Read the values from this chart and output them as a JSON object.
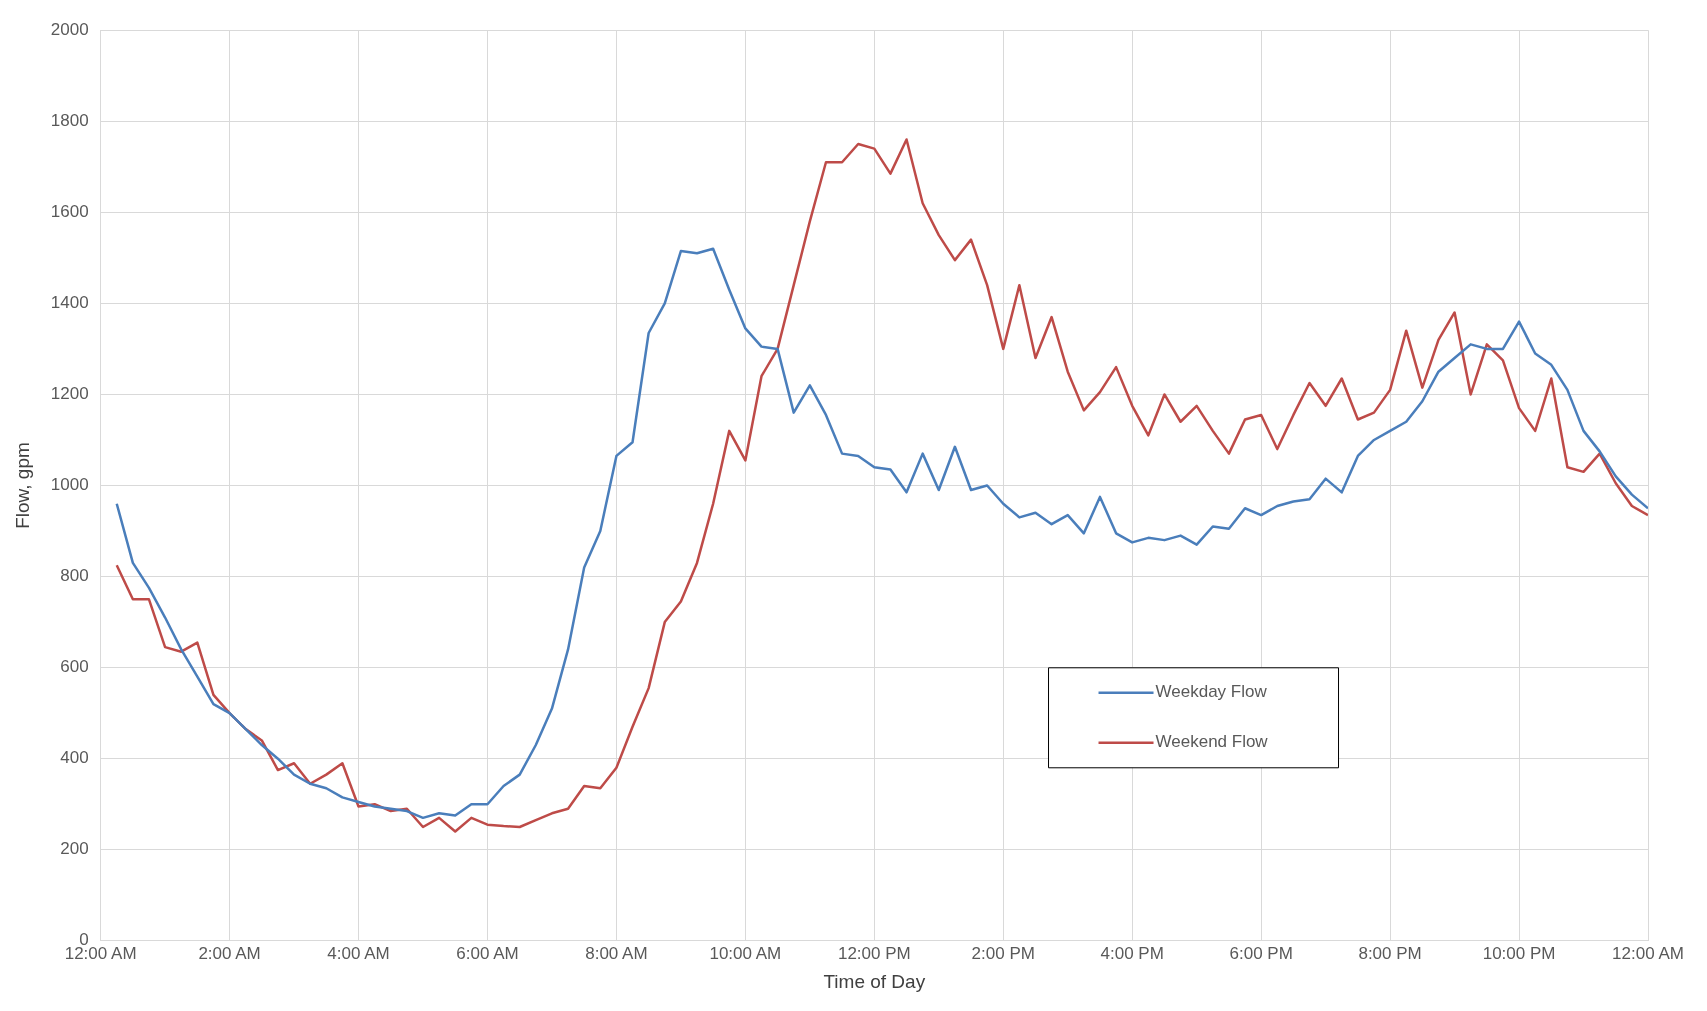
{
  "chart_data": {
    "type": "line",
    "xlabel": "Time of Day",
    "ylabel": "Flow, gpm",
    "x": [
      0.25,
      0.5,
      0.75,
      1,
      1.25,
      1.5,
      1.75,
      2,
      2.25,
      2.5,
      2.75,
      3,
      3.25,
      3.5,
      3.75,
      4,
      4.25,
      4.5,
      4.75,
      5,
      5.25,
      5.5,
      5.75,
      6,
      6.25,
      6.5,
      6.75,
      7,
      7.25,
      7.5,
      7.75,
      8,
      8.25,
      8.5,
      8.75,
      9,
      9.25,
      9.5,
      9.75,
      10,
      10.25,
      10.5,
      10.75,
      11,
      11.25,
      11.5,
      11.75,
      12,
      12.25,
      12.5,
      12.75,
      13,
      13.25,
      13.5,
      13.75,
      14,
      14.25,
      14.5,
      14.75,
      15,
      15.25,
      15.5,
      15.75,
      16,
      16.25,
      16.5,
      16.75,
      17,
      17.25,
      17.5,
      17.75,
      18,
      18.25,
      18.5,
      18.75,
      19,
      19.25,
      19.5,
      19.75,
      20,
      20.25,
      20.5,
      20.75,
      21,
      21.25,
      21.5,
      21.75,
      22,
      22.25,
      22.5,
      22.75,
      23,
      23.25,
      23.5,
      23.75,
      24
    ],
    "series": [
      {
        "name": "Weekday Flow",
        "color": "#4a7ebb",
        "values": [
          960,
          830,
          775,
          710,
          640,
          580,
          520,
          500,
          465,
          430,
          400,
          365,
          345,
          335,
          315,
          305,
          295,
          290,
          285,
          270,
          280,
          275,
          300,
          300,
          340,
          365,
          430,
          510,
          640,
          820,
          900,
          1065,
          1095,
          1335,
          1400,
          1515,
          1510,
          1520,
          1430,
          1345,
          1305,
          1300,
          1160,
          1220,
          1155,
          1070,
          1065,
          1040,
          1035,
          985,
          1070,
          990,
          1085,
          990,
          1000,
          960,
          930,
          940,
          915,
          935,
          895,
          975,
          895,
          875,
          885,
          880,
          890,
          870,
          910,
          905,
          950,
          935,
          955,
          965,
          970,
          1015,
          985,
          1065,
          1100,
          1120,
          1140,
          1185,
          1250,
          1280,
          1310,
          1300,
          1300,
          1360,
          1290,
          1265,
          1210,
          1120,
          1075,
          1020,
          980,
          950
        ]
      },
      {
        "name": "Weekend Flow",
        "color": "#be4b48",
        "values": [
          825,
          750,
          750,
          645,
          635,
          655,
          540,
          500,
          465,
          440,
          375,
          390,
          345,
          365,
          390,
          295,
          300,
          285,
          290,
          250,
          270,
          240,
          270,
          255,
          252,
          250,
          265,
          280,
          290,
          340,
          335,
          380,
          470,
          555,
          700,
          745,
          830,
          960,
          1120,
          1055,
          1240,
          1300,
          1440,
          1580,
          1710,
          1710,
          1750,
          1740,
          1685,
          1760,
          1620,
          1550,
          1495,
          1540,
          1440,
          1300,
          1440,
          1280,
          1370,
          1250,
          1165,
          1205,
          1260,
          1175,
          1110,
          1200,
          1140,
          1175,
          1120,
          1070,
          1145,
          1155,
          1080,
          1155,
          1225,
          1175,
          1235,
          1145,
          1160,
          1210,
          1340,
          1215,
          1320,
          1380,
          1200,
          1310,
          1275,
          1170,
          1120,
          1235,
          1040,
          1030,
          1070,
          1005,
          955,
          935
        ]
      }
    ],
    "xlim": [
      0,
      24
    ],
    "xticks": [
      {
        "value": 0,
        "label": "12:00 AM"
      },
      {
        "value": 2,
        "label": "2:00 AM"
      },
      {
        "value": 4,
        "label": "4:00 AM"
      },
      {
        "value": 6,
        "label": "6:00 AM"
      },
      {
        "value": 8,
        "label": "8:00 AM"
      },
      {
        "value": 10,
        "label": "10:00 AM"
      },
      {
        "value": 12,
        "label": "12:00 PM"
      },
      {
        "value": 14,
        "label": "2:00 PM"
      },
      {
        "value": 16,
        "label": "4:00 PM"
      },
      {
        "value": 18,
        "label": "6:00 PM"
      },
      {
        "value": 20,
        "label": "8:00 PM"
      },
      {
        "value": 22,
        "label": "10:00 PM"
      },
      {
        "value": 24,
        "label": "12:00 AM"
      }
    ],
    "ylim": [
      0,
      2000
    ],
    "yticks": [
      0,
      200,
      400,
      600,
      800,
      1000,
      1200,
      1400,
      1600,
      1800,
      2000
    ],
    "grid": true,
    "legend": "bottom right",
    "marker": "none",
    "line_style": "solid"
  }
}
